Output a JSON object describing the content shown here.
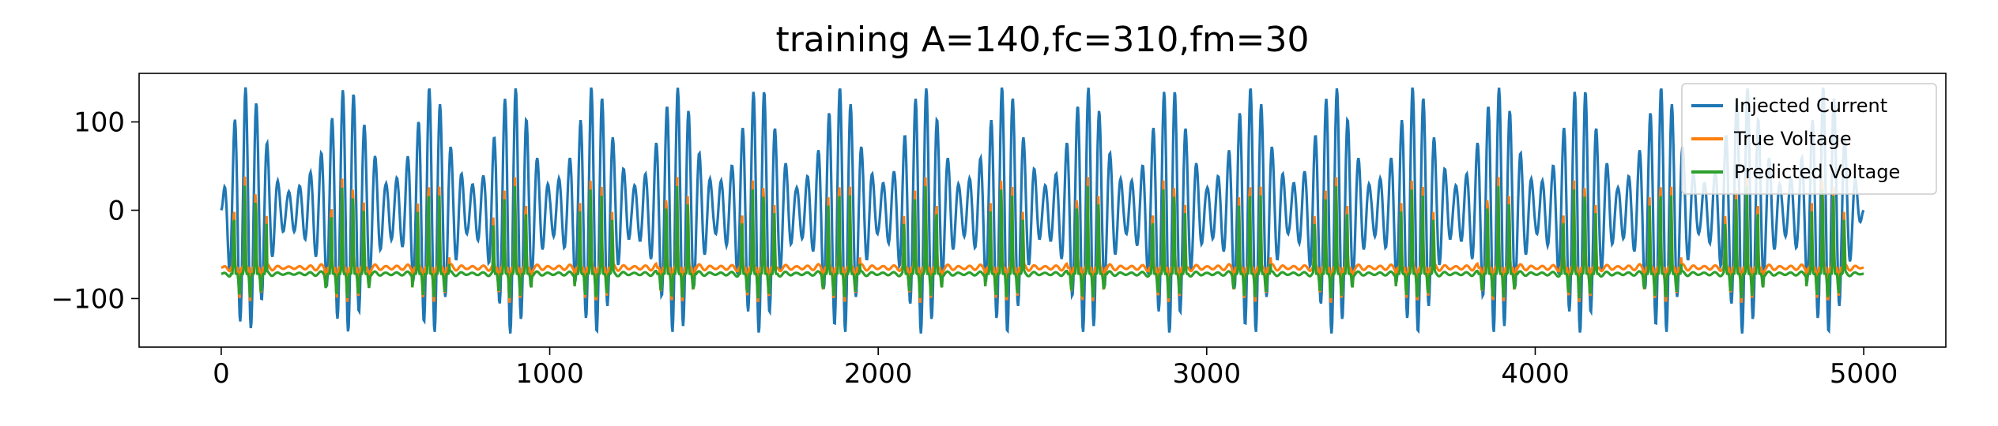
{
  "chart_data": {
    "type": "line",
    "title": "training A=140,fc=310,fm=30",
    "xlabel": "",
    "ylabel": "",
    "xlim": [
      -250,
      5250
    ],
    "ylim": [
      -155,
      155
    ],
    "xticks": [
      0,
      1000,
      2000,
      3000,
      4000,
      5000
    ],
    "xtick_labels": [
      "0",
      "1000",
      "2000",
      "3000",
      "4000",
      "5000"
    ],
    "yticks": [
      -100,
      0,
      100
    ],
    "ytick_labels": [
      "−100",
      "0",
      "100"
    ],
    "grid": false,
    "legend_position": "top-right",
    "colors": {
      "injected_current": "#1f77b4",
      "true_voltage": "#ff7f0e",
      "predicted_voltage": "#2ca02c"
    },
    "series": [
      {
        "name": "Injected Current",
        "description_of_signal": "AM-modulated sinusoid, amplitude envelope up to 140",
        "amplitude": 140,
        "x": [
          0,
          25,
          50,
          75,
          100,
          125,
          150,
          175,
          200,
          250,
          300,
          350,
          375,
          400,
          425,
          450,
          500,
          550,
          600,
          625,
          650,
          675,
          700,
          750,
          800,
          850,
          875,
          900,
          925,
          950,
          1000,
          1050,
          1100,
          1125,
          1150,
          1175,
          1200,
          1250,
          1300,
          1350,
          1375,
          1400,
          1425,
          1450,
          1500,
          1550,
          1600,
          1625,
          1650,
          1675,
          1700,
          1750,
          1800,
          1850,
          1875,
          1900,
          1925,
          1950,
          2000,
          2050,
          2100,
          2125,
          2150,
          2175,
          2200,
          2250,
          2300,
          2350,
          2375,
          2400,
          2425,
          2450,
          2500,
          2550,
          2600,
          2625,
          2650,
          2675,
          2700,
          2750,
          2800,
          2850,
          2875,
          2900,
          2925,
          2950,
          3000,
          3050,
          3100,
          3125,
          3150,
          3175,
          3200,
          3250,
          3300,
          3350,
          3375,
          3400,
          3425,
          3450,
          3500,
          3550,
          3600,
          3625,
          3650,
          3675,
          3700,
          3750,
          3800,
          3850,
          3875,
          3900,
          3925,
          3950,
          4000,
          4050,
          4100,
          4125,
          4150,
          4175,
          4200,
          4250,
          4300,
          4350,
          4375,
          4400,
          4425,
          4450,
          4500,
          4550,
          4600,
          4625,
          4650,
          4675,
          4700,
          4750,
          4800,
          4850,
          4875,
          4900,
          4925,
          4950,
          5000
        ],
        "envelope": [
          0,
          70,
          120,
          140,
          130,
          100,
          60,
          30,
          20,
          30,
          60,
          120,
          140,
          135,
          110,
          80,
          30,
          40,
          100,
          140,
          138,
          110,
          70,
          25,
          40,
          110,
          140,
          138,
          110,
          70,
          25,
          45,
          110,
          140,
          138,
          110,
          70,
          25,
          45,
          110,
          140,
          138,
          110,
          70,
          25,
          45,
          110,
          140,
          138,
          110,
          70,
          25,
          45,
          110,
          140,
          138,
          110,
          70,
          25,
          45,
          110,
          140,
          138,
          110,
          70,
          25,
          45,
          110,
          140,
          138,
          110,
          70,
          25,
          45,
          110,
          140,
          138,
          110,
          70,
          25,
          45,
          110,
          140,
          138,
          110,
          70,
          25,
          45,
          110,
          140,
          138,
          110,
          70,
          25,
          45,
          110,
          140,
          138,
          110,
          70,
          25,
          45,
          110,
          140,
          138,
          110,
          70,
          25,
          45,
          110,
          140,
          138,
          110,
          70,
          25,
          45,
          110,
          140,
          138,
          110,
          70,
          25,
          45,
          110,
          140,
          138,
          110,
          70,
          25,
          45,
          110,
          140,
          138,
          110,
          70,
          25,
          45,
          110,
          140,
          138,
          110,
          70,
          0
        ]
      },
      {
        "name": "True Voltage",
        "baseline": -65,
        "spike_max": 40,
        "trough_min": -110
      },
      {
        "name": "Predicted Voltage",
        "baseline": -72,
        "spike_max": 35,
        "trough_min": -100
      }
    ]
  }
}
